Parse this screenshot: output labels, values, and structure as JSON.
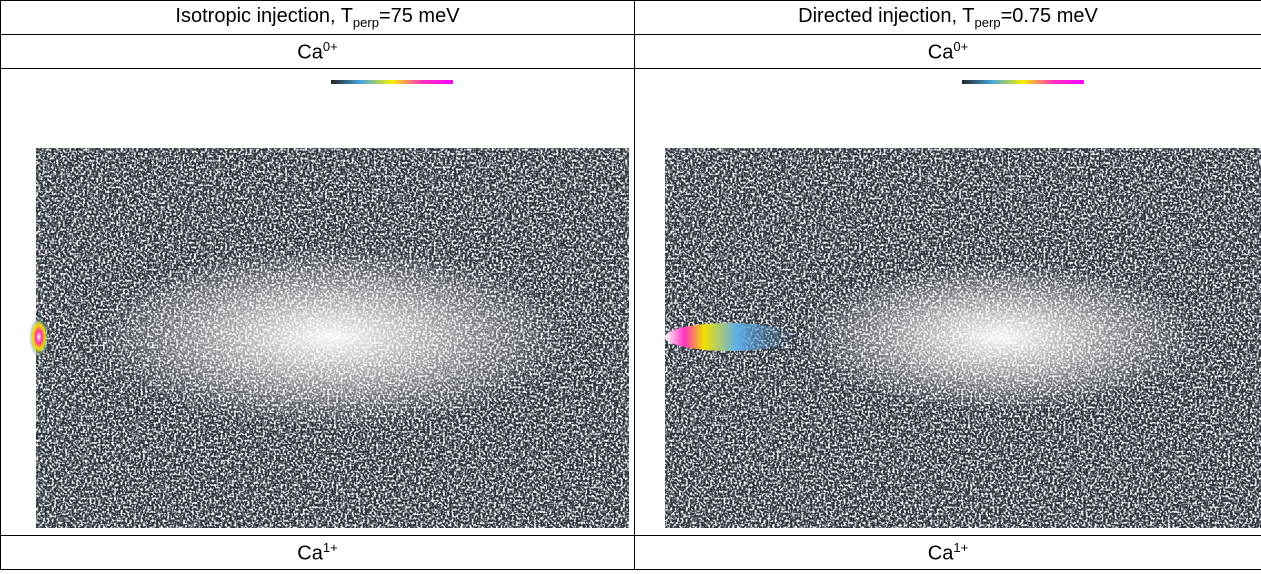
{
  "table": {
    "header": [
      {
        "prefix": "Isotropic injection, T",
        "sub": "perp",
        "suffix": "=75 meV"
      },
      {
        "prefix": "Directed injection, T",
        "sub": "perp",
        "suffix": "=0.75 meV"
      }
    ],
    "top_labels": [
      {
        "base": "Ca",
        "sup": "0+"
      },
      {
        "base": "Ca",
        "sup": "0+"
      }
    ],
    "bottom_labels": [
      {
        "base": "Ca",
        "sup": "1+"
      },
      {
        "base": "Ca",
        "sup": "1+"
      }
    ]
  }
}
